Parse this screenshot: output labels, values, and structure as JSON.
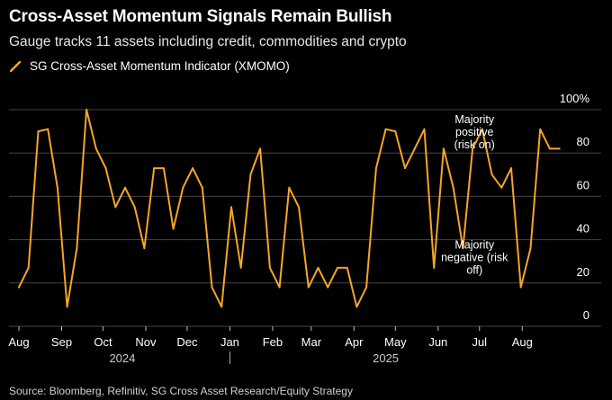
{
  "title": "Cross-Asset Momentum Signals Remain Bullish",
  "subtitle": "Gauge tracks 11 assets including credit, commodities and crypto",
  "source": "Source: Bloomberg, Refinitiv, SG Cross Asset Research/Equity Strategy",
  "colors": {
    "background": "#000000",
    "line": "#f5a623",
    "grid": "#444444",
    "text": "#ffffff"
  },
  "chart_data": {
    "type": "line",
    "series": [
      {
        "name": "SG Cross-Asset Momentum Indicator (XMOMO)",
        "x": [
          "2024-08-01",
          "2024-08-08",
          "2024-08-15",
          "2024-08-22",
          "2024-08-29",
          "2024-09-05",
          "2024-09-12",
          "2024-09-19",
          "2024-09-26",
          "2024-10-03",
          "2024-10-10",
          "2024-10-17",
          "2024-10-24",
          "2024-10-31",
          "2024-11-07",
          "2024-11-14",
          "2024-11-21",
          "2024-11-28",
          "2024-12-05",
          "2024-12-12",
          "2024-12-19",
          "2024-12-26",
          "2025-01-02",
          "2025-01-09",
          "2025-01-16",
          "2025-01-23",
          "2025-01-30",
          "2025-02-06",
          "2025-02-13",
          "2025-02-20",
          "2025-02-27",
          "2025-03-06",
          "2025-03-13",
          "2025-03-20",
          "2025-03-27",
          "2025-04-03",
          "2025-04-10",
          "2025-04-17",
          "2025-04-24",
          "2025-05-01",
          "2025-05-08",
          "2025-05-15",
          "2025-05-22",
          "2025-05-29",
          "2025-06-05",
          "2025-06-12",
          "2025-06-19",
          "2025-06-26",
          "2025-07-03",
          "2025-07-10",
          "2025-07-17",
          "2025-07-24",
          "2025-07-31",
          "2025-08-07",
          "2025-08-14",
          "2025-08-21",
          "2025-08-28"
        ],
        "values": [
          18,
          27,
          90,
          91,
          64,
          9,
          36,
          100,
          82,
          73,
          55,
          64,
          55,
          36,
          73,
          73,
          45,
          64,
          73,
          64,
          18,
          9,
          55,
          27,
          70,
          82,
          27,
          18,
          64,
          55,
          18,
          27,
          18,
          27,
          27,
          9,
          18,
          73,
          91,
          90,
          73,
          82,
          91,
          27,
          82,
          64,
          36,
          82,
          91,
          70,
          64,
          73,
          18,
          36,
          91,
          82,
          82
        ]
      }
    ],
    "xlabel": "",
    "ylabel": "",
    "ylim": [
      0,
      100
    ],
    "y_ticks": [
      0,
      20,
      40,
      60,
      80,
      100
    ],
    "y_tick_labels": [
      "0",
      "20",
      "40",
      "60",
      "80",
      "100%"
    ],
    "x_ticks": [
      {
        "label": "Aug",
        "date": "2024-08-01"
      },
      {
        "label": "Sep",
        "date": "2024-09-01"
      },
      {
        "label": "Oct",
        "date": "2024-10-01"
      },
      {
        "label": "Nov",
        "date": "2024-11-01"
      },
      {
        "label": "Dec",
        "date": "2024-12-01"
      },
      {
        "label": "Jan",
        "date": "2025-01-01"
      },
      {
        "label": "Feb",
        "date": "2025-02-01"
      },
      {
        "label": "Mar",
        "date": "2025-03-01"
      },
      {
        "label": "Apr",
        "date": "2025-04-01"
      },
      {
        "label": "May",
        "date": "2025-05-01"
      },
      {
        "label": "Jun",
        "date": "2025-06-01"
      },
      {
        "label": "Jul",
        "date": "2025-07-01"
      },
      {
        "label": "Aug",
        "date": "2025-08-01"
      }
    ],
    "year_labels": [
      {
        "label": "2024",
        "date": "2024-10-15"
      },
      {
        "label": "2025",
        "date": "2025-04-24"
      }
    ],
    "year_divider_date": "2025-01-01",
    "annotations": [
      {
        "lines": [
          "Majority",
          "positive",
          "(risk on)"
        ],
        "date": "2025-06-30",
        "value": 88
      },
      {
        "lines": [
          "Majority",
          "negative (risk",
          "off)"
        ],
        "date": "2025-06-30",
        "value": 30
      }
    ],
    "grid": true,
    "legend": "top-left"
  }
}
